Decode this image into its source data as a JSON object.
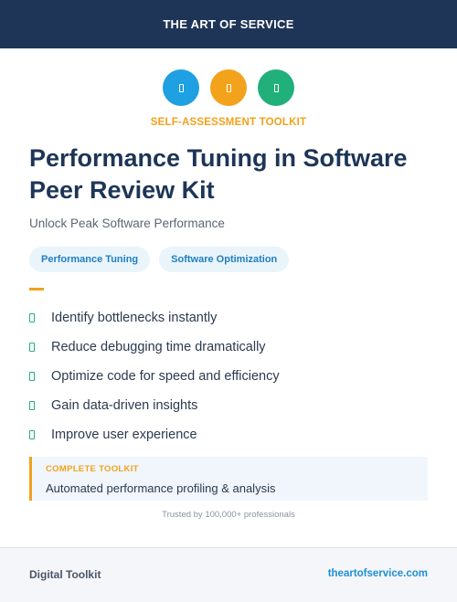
{
  "header": {
    "brand": "THE ART OF SERVICE"
  },
  "icons": [
    {
      "name": "blue-icon",
      "color": "#1ea0e3"
    },
    {
      "name": "orange-icon",
      "color": "#f2a21b"
    },
    {
      "name": "green-icon",
      "color": "#22b07a"
    }
  ],
  "eyebrow": "SELF-ASSESSMENT TOOLKIT",
  "title": "Performance Tuning in Software Peer Review Kit",
  "subtitle": "Unlock Peak Software Performance",
  "tags": [
    "Performance Tuning",
    "Software Optimization"
  ],
  "features": [
    "Identify bottlenecks instantly",
    "Reduce debugging time dramatically",
    "Optimize code for speed and efficiency",
    "Gain data-driven insights",
    "Improve user experience"
  ],
  "callout": {
    "label": "COMPLETE TOOLKIT",
    "text": "Automated performance profiling & analysis"
  },
  "trusted": "Trusted by 100,000+ professionals",
  "footer": {
    "left": "Digital Toolkit",
    "right": "theartofservice.com"
  },
  "colors": {
    "navy": "#1e3557",
    "accent_orange": "#f0a21c",
    "accent_green": "#22b07a",
    "link_blue": "#1f8fd6"
  }
}
